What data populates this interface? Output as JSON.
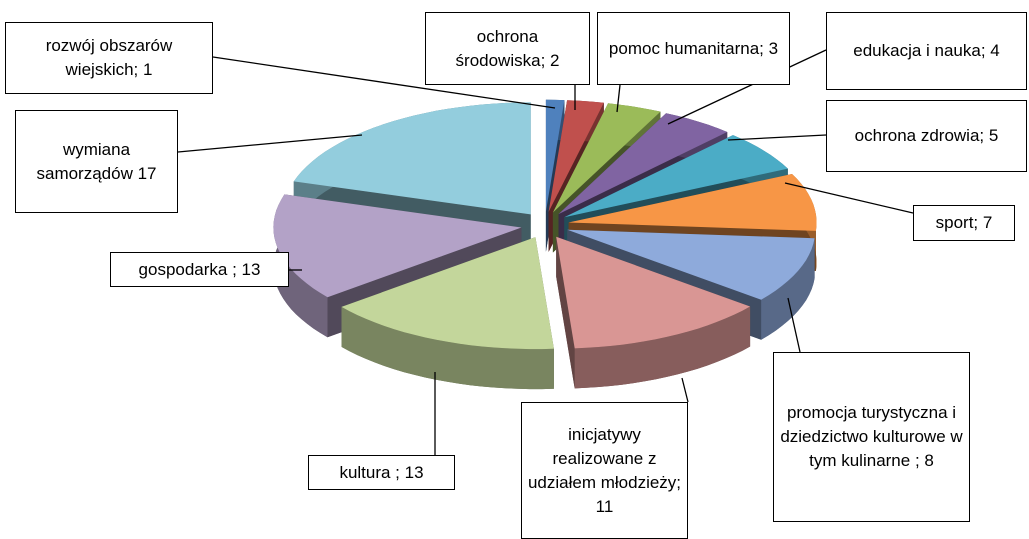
{
  "chart_data": {
    "type": "pie",
    "labels": [
      "rozwój obszarów wiejskich; 1",
      "ochrona środowiska; 2",
      "pomoc humanitarna; 3",
      "edukacja i nauka; 4",
      "ochrona zdrowia; 5",
      "sport; 7",
      "promocja turystyczna i dziedzictwo kulturowe w tym kulinarne ; 8",
      "inicjatywy realizowane z udziałem młodzieży; 11",
      "kultura ; 13",
      "gospodarka ; 13",
      "wymiana samorządów 17"
    ],
    "values": [
      1,
      2,
      3,
      4,
      5,
      7,
      8,
      11,
      13,
      13,
      17
    ],
    "colors": [
      "#4f81bd",
      "#c0504d",
      "#9bbb59",
      "#8064a2",
      "#4bacc6",
      "#f79646",
      "#8eaadb",
      "#d99694",
      "#c3d69b",
      "#b3a2c7",
      "#93cddd"
    ]
  }
}
